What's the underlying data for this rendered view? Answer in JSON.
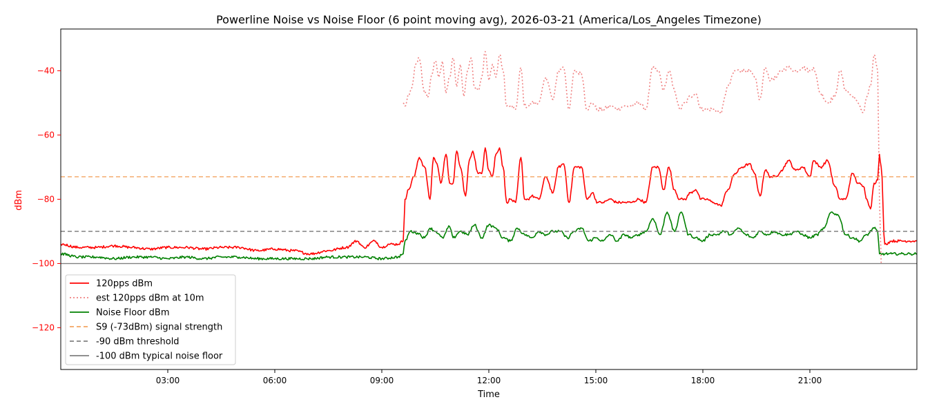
{
  "chart_data": {
    "type": "line",
    "title": "Powerline Noise vs Noise Floor (6 point moving avg), 2026-03-21 (America/Los_Angeles Timezone)",
    "xlabel": "Time",
    "ylabel": "dBm",
    "x_unit": "hours of day",
    "xlim": [
      0,
      24
    ],
    "ylim": [
      -133,
      -27
    ],
    "xticks": [
      {
        "value": 3,
        "label": "03:00"
      },
      {
        "value": 6,
        "label": "06:00"
      },
      {
        "value": 9,
        "label": "09:00"
      },
      {
        "value": 12,
        "label": "12:00"
      },
      {
        "value": 15,
        "label": "15:00"
      },
      {
        "value": 18,
        "label": "18:00"
      },
      {
        "value": 21,
        "label": "21:00"
      }
    ],
    "yticks": [
      {
        "value": -40,
        "label": "−40"
      },
      {
        "value": -60,
        "label": "−60"
      },
      {
        "value": -80,
        "label": "−80"
      },
      {
        "value": -100,
        "label": "−100"
      },
      {
        "value": -120,
        "label": "−120"
      }
    ],
    "axis_color": "#ff0000",
    "grid": false,
    "legend_position": "lower-left",
    "series": [
      {
        "name": "120pps dBm",
        "color": "#ff0000",
        "style": "solid",
        "x": [
          0,
          0.5,
          1,
          1.5,
          2,
          2.5,
          3,
          3.5,
          4,
          4.5,
          5,
          5.5,
          6,
          6.5,
          7,
          7.5,
          8,
          8.3,
          8.5,
          8.8,
          9,
          9.2,
          9.45,
          9.6,
          9.65,
          9.75,
          9.9,
          10.05,
          10.2,
          10.35,
          10.45,
          10.55,
          10.65,
          10.8,
          10.9,
          11.0,
          11.1,
          11.2,
          11.35,
          11.45,
          11.55,
          11.7,
          11.8,
          11.9,
          12.0,
          12.1,
          12.2,
          12.3,
          12.4,
          12.5,
          12.6,
          12.75,
          12.9,
          13.0,
          13.1,
          13.2,
          13.4,
          13.6,
          13.8,
          13.95,
          14.1,
          14.25,
          14.4,
          14.6,
          14.75,
          14.9,
          15.05,
          15.2,
          15.4,
          15.6,
          15.8,
          16.0,
          16.2,
          16.4,
          16.6,
          16.75,
          16.9,
          17.05,
          17.2,
          17.35,
          17.5,
          17.65,
          17.8,
          17.95,
          18.1,
          18.3,
          18.5,
          18.7,
          18.9,
          19.1,
          19.3,
          19.45,
          19.6,
          19.75,
          19.9,
          20.05,
          20.2,
          20.4,
          20.6,
          20.8,
          21.0,
          21.1,
          21.3,
          21.5,
          21.7,
          21.85,
          22.0,
          22.2,
          22.35,
          22.5,
          22.6,
          22.7,
          22.8,
          22.9,
          22.95,
          23.0,
          23.1,
          23.3,
          23.5,
          23.8,
          24
        ],
        "values": [
          -94,
          -95,
          -95,
          -94.5,
          -95,
          -95.5,
          -95,
          -95,
          -95.5,
          -95,
          -95,
          -96,
          -95.5,
          -96,
          -97,
          -96,
          -95,
          -93,
          -95,
          -93,
          -95,
          -94,
          -94,
          -93,
          -80,
          -77,
          -73,
          -67,
          -70,
          -80,
          -67,
          -69,
          -75,
          -66,
          -75,
          -75,
          -65,
          -70,
          -79,
          -68,
          -65,
          -72,
          -72,
          -64,
          -71,
          -73,
          -66,
          -64,
          -70,
          -81,
          -80,
          -81,
          -67,
          -80,
          -80,
          -79,
          -80,
          -73,
          -78,
          -70,
          -69,
          -81,
          -70,
          -70,
          -80,
          -78,
          -81,
          -81,
          -80,
          -81,
          -81,
          -81,
          -80,
          -81,
          -70,
          -70,
          -77,
          -70,
          -77,
          -80,
          -80,
          -78,
          -77,
          -80,
          -80,
          -81,
          -82,
          -77,
          -72,
          -70,
          -69,
          -72,
          -79,
          -71,
          -73,
          -73,
          -71,
          -68,
          -71,
          -70,
          -73,
          -68,
          -70,
          -68,
          -76,
          -80,
          -80,
          -72,
          -75,
          -76,
          -80,
          -83,
          -75,
          -74,
          -66,
          -70,
          -94,
          -93,
          -93,
          -93,
          -93
        ]
      },
      {
        "name": "est 120pps dBm at 10m",
        "color": "#f08080",
        "style": "dotted",
        "x": [
          0,
          9.45,
          9.6,
          9.65,
          9.75,
          9.85,
          9.95,
          10.05,
          10.2,
          10.3,
          10.4,
          10.5,
          10.6,
          10.7,
          10.8,
          10.9,
          11.0,
          11.1,
          11.2,
          11.3,
          11.4,
          11.5,
          11.6,
          11.7,
          11.8,
          11.9,
          12.0,
          12.1,
          12.2,
          12.3,
          12.4,
          12.5,
          12.6,
          12.75,
          12.9,
          13.0,
          13.1,
          13.2,
          13.4,
          13.6,
          13.8,
          13.95,
          14.1,
          14.25,
          14.4,
          14.6,
          14.75,
          14.9,
          15.05,
          15.2,
          15.4,
          15.6,
          15.8,
          16.0,
          16.2,
          16.4,
          16.6,
          16.75,
          16.9,
          17.05,
          17.2,
          17.35,
          17.5,
          17.65,
          17.8,
          17.95,
          18.1,
          18.3,
          18.5,
          18.7,
          18.9,
          19.1,
          19.3,
          19.45,
          19.6,
          19.75,
          19.9,
          20.05,
          20.2,
          20.4,
          20.6,
          20.8,
          21.0,
          21.1,
          21.3,
          21.5,
          21.7,
          21.85,
          22.0,
          22.2,
          22.35,
          22.5,
          22.6,
          22.7,
          22.8,
          22.9,
          22.95,
          23.0
        ],
        "values": [
          null,
          null,
          -50,
          -51,
          -48,
          -45,
          -38,
          -36,
          -47,
          -48,
          -41,
          -37,
          -42,
          -37,
          -47,
          -42,
          -36,
          -45,
          -38,
          -48,
          -40,
          -36,
          -45,
          -46,
          -42,
          -34,
          -43,
          -38,
          -42,
          -35,
          -40,
          -51,
          -51,
          -52,
          -39,
          -51,
          -51,
          -50,
          -50,
          -42,
          -49,
          -40,
          -39,
          -52,
          -40,
          -41,
          -52,
          -50,
          -52,
          -52,
          -51,
          -52,
          -51,
          -51,
          -50,
          -52,
          -39,
          -40,
          -46,
          -40,
          -46,
          -52,
          -50,
          -48,
          -47,
          -52,
          -52,
          -52,
          -53,
          -45,
          -40,
          -40,
          -40,
          -42,
          -49,
          -39,
          -43,
          -42,
          -40,
          -39,
          -40,
          -39,
          -40,
          -39,
          -47,
          -50,
          -48,
          -40,
          -46,
          -48,
          -50,
          -53,
          -48,
          -45,
          -35,
          -40,
          -80,
          -100
        ]
      },
      {
        "name": "Noise Floor dBm",
        "color": "#008000",
        "style": "solid",
        "x": [
          0,
          0.5,
          1,
          1.5,
          2,
          2.5,
          3,
          3.5,
          4,
          4.5,
          5,
          5.5,
          6,
          6.5,
          7,
          7.5,
          8,
          8.5,
          9,
          9.45,
          9.6,
          9.65,
          9.8,
          10.0,
          10.2,
          10.35,
          10.5,
          10.7,
          10.9,
          11.0,
          11.2,
          11.4,
          11.6,
          11.8,
          12.0,
          12.2,
          12.4,
          12.6,
          12.8,
          13.0,
          13.2,
          13.4,
          13.6,
          13.8,
          14.0,
          14.2,
          14.4,
          14.6,
          14.8,
          15.0,
          15.2,
          15.4,
          15.6,
          15.8,
          16.0,
          16.2,
          16.4,
          16.6,
          16.8,
          17.0,
          17.2,
          17.4,
          17.6,
          17.8,
          18.0,
          18.2,
          18.4,
          18.6,
          18.8,
          19.0,
          19.2,
          19.4,
          19.6,
          19.8,
          20.0,
          20.2,
          20.4,
          20.6,
          20.8,
          21.0,
          21.2,
          21.4,
          21.6,
          21.8,
          22.0,
          22.2,
          22.4,
          22.6,
          22.8,
          22.9,
          22.95,
          23.0,
          23.1,
          23.3,
          23.5,
          23.8,
          24
        ],
        "values": [
          -97,
          -98,
          -98,
          -98.5,
          -98,
          -98,
          -98.5,
          -98,
          -98.5,
          -98,
          -98,
          -98.5,
          -98.5,
          -98.5,
          -98.5,
          -98,
          -98,
          -98,
          -98.5,
          -98,
          -97,
          -93,
          -90,
          -90.5,
          -92,
          -89,
          -90,
          -92,
          -88.5,
          -92,
          -90,
          -91,
          -88,
          -92,
          -88,
          -89,
          -92,
          -93,
          -89,
          -91,
          -92,
          -90,
          -91,
          -90,
          -90,
          -92,
          -90,
          -89,
          -93,
          -92,
          -93,
          -91,
          -93,
          -91,
          -92,
          -91,
          -90,
          -86,
          -91,
          -84,
          -90,
          -84,
          -91,
          -92,
          -93,
          -91,
          -91,
          -90,
          -91,
          -89,
          -91,
          -92,
          -90,
          -91,
          -90,
          -91,
          -91,
          -90,
          -91,
          -92,
          -91,
          -89,
          -84,
          -85,
          -91,
          -92,
          -93,
          -91,
          -89,
          -90,
          -97,
          -97,
          -97,
          -97,
          -97,
          -97,
          -97
        ]
      }
    ],
    "reference_lines": [
      {
        "name": "S9 (-73dBm) signal strength",
        "y": -73,
        "color": "#f4a460",
        "style": "dashed"
      },
      {
        "name": "-90 dBm threshold",
        "y": -90,
        "color": "#808080",
        "style": "dashed"
      },
      {
        "name": "-100 dBm typical noise floor",
        "y": -100,
        "color": "#808080",
        "style": "solid"
      }
    ]
  }
}
